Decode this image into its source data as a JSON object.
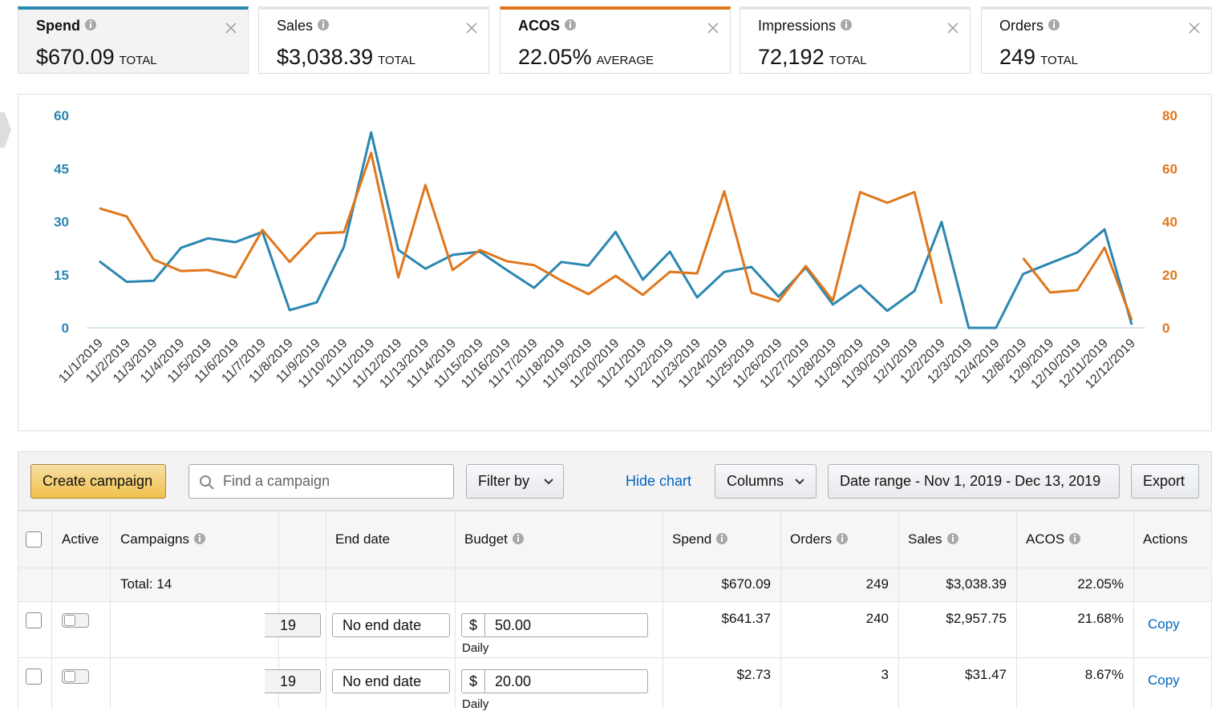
{
  "metrics": [
    {
      "label": "Spend",
      "value": "$670.09",
      "qualifier": "TOTAL"
    },
    {
      "label": "Sales",
      "value": "$3,038.39",
      "qualifier": "TOTAL"
    },
    {
      "label": "ACOS",
      "value": "22.05%",
      "qualifier": "AVERAGE"
    },
    {
      "label": "Impressions",
      "value": "72,192",
      "qualifier": "TOTAL"
    },
    {
      "label": "Orders",
      "value": "249",
      "qualifier": "TOTAL"
    }
  ],
  "chart_data": {
    "type": "line",
    "x": [
      "11/1/2019",
      "11/2/2019",
      "11/3/2019",
      "11/4/2019",
      "11/5/2019",
      "11/6/2019",
      "11/7/2019",
      "11/8/2019",
      "11/9/2019",
      "11/10/2019",
      "11/11/2019",
      "11/12/2019",
      "11/13/2019",
      "11/14/2019",
      "11/15/2019",
      "11/16/2019",
      "11/17/2019",
      "11/18/2019",
      "11/19/2019",
      "11/20/2019",
      "11/21/2019",
      "11/22/2019",
      "11/23/2019",
      "11/24/2019",
      "11/25/2019",
      "11/26/2019",
      "11/27/2019",
      "11/28/2019",
      "11/29/2019",
      "11/30/2019",
      "12/1/2019",
      "12/2/2019",
      "12/3/2019",
      "12/4/2019",
      "12/8/2019",
      "12/9/2019",
      "12/10/2019",
      "12/11/2019",
      "12/12/2019"
    ],
    "series": [
      {
        "color": "#2b87b0",
        "values": [
          18.8,
          13,
          13.3,
          22.6,
          25.3,
          24.2,
          27.1,
          5,
          7.2,
          22.9,
          55.2,
          22,
          16.7,
          20.6,
          21.5,
          16.3,
          11.3,
          18.6,
          17.6,
          27.1,
          13.6,
          21.5,
          8.6,
          15.8,
          17.2,
          8.8,
          17,
          6.6,
          12,
          4.8,
          10.4,
          29.9,
          0,
          0,
          15.2,
          18.3,
          21.3,
          27.8,
          0.9
        ]
      },
      {
        "color": "#e0761b",
        "axis": "y2",
        "values": [
          45,
          42,
          25.7,
          21.4,
          21.8,
          19,
          36.9,
          24.8,
          35.6,
          36,
          65.9,
          19,
          53.8,
          21.8,
          29.3,
          25.1,
          23.6,
          17.8,
          12.7,
          19.6,
          12.4,
          21.1,
          20.5,
          51.4,
          13.3,
          10,
          23.3,
          10.3,
          51.1,
          47.1,
          51.1,
          9.1,
          null,
          null,
          26.3,
          13.3,
          14.2,
          30.2,
          3
        ]
      }
    ],
    "ylim": [
      0,
      60
    ],
    "yticks": [
      0,
      15,
      30,
      45,
      60
    ],
    "y2lim": [
      0,
      80
    ],
    "y2ticks": [
      0,
      20,
      40,
      60,
      80
    ],
    "grid": false
  },
  "toolbar": {
    "create": "Create campaign",
    "search_placeholder": "Find a campaign",
    "filter": "Filter by",
    "hide_chart": "Hide chart",
    "columns": "Columns",
    "date_range": "Date range - Nov 1, 2019 - Dec 13, 2019",
    "export": "Export"
  },
  "table": {
    "headers": {
      "active": "Active",
      "campaigns": "Campaigns",
      "end_date": "End date",
      "budget": "Budget",
      "spend": "Spend",
      "orders": "Orders",
      "sales": "Sales",
      "acos": "ACOS",
      "actions": "Actions"
    },
    "total": {
      "label": "Total: 14",
      "spend": "$670.09",
      "orders": "249",
      "sales": "$3,038.39",
      "acos": "22.05%"
    },
    "rows": [
      {
        "start": "19",
        "end_date": "No end date",
        "currency": "$",
        "budget": "50.00",
        "budget_type": "Daily",
        "spend": "$641.37",
        "orders": "240",
        "sales": "$2,957.75",
        "acos": "21.68%",
        "action": "Copy"
      },
      {
        "start": "19",
        "end_date": "No end date",
        "currency": "$",
        "budget": "20.00",
        "budget_type": "Daily",
        "spend": "$2.73",
        "orders": "3",
        "sales": "$31.47",
        "acos": "8.67%",
        "action": "Copy"
      }
    ]
  }
}
